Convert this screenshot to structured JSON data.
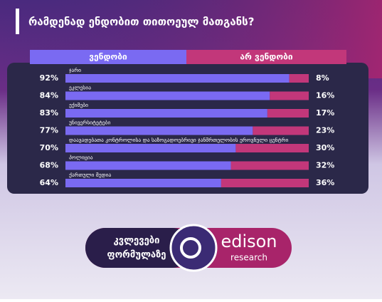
{
  "chart_data": {
    "type": "stacked-barh",
    "title": "რამდენად ენდობით თითოეულ მათგანს?",
    "categories": [
      "ჯარი",
      "ეკლესია",
      "ექიმები",
      "უნივერსიტეტები",
      "დაავადებათა კონტროლისა და საზოგადოებრივი ჯანმრთელობის ეროვნული ცენტრი",
      "პოლიცია",
      "ქართული მედია"
    ],
    "xlim": [
      0,
      100
    ],
    "series": [
      {
        "name": "ვენდობი",
        "color": "#7a6af2",
        "values": [
          92,
          84,
          83,
          77,
          70,
          68,
          64
        ],
        "value_labels": [
          "92%",
          "84%",
          "83%",
          "77%",
          "70%",
          "68%",
          "64%"
        ]
      },
      {
        "name": "არ ვენდობი",
        "color": "#c2377a",
        "values": [
          8,
          16,
          17,
          23,
          30,
          32,
          36
        ],
        "value_labels": [
          "8%",
          "16%",
          "17%",
          "23%",
          "30%",
          "32%",
          "36%"
        ]
      }
    ]
  },
  "footer": {
    "line1": "კვლევები",
    "line2": "ფორმულაზე",
    "brand": "edison",
    "brand_sub": "research"
  }
}
